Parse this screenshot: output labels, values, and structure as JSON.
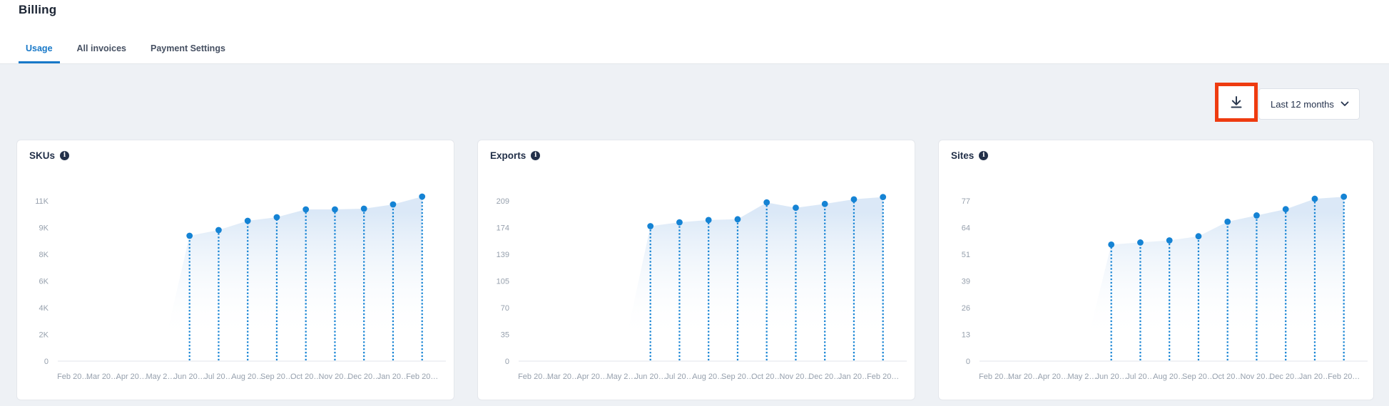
{
  "page": {
    "title": "Billing"
  },
  "tabs": {
    "items": [
      {
        "label": "Usage",
        "active": true
      },
      {
        "label": "All invoices",
        "active": false
      },
      {
        "label": "Payment Settings",
        "active": false
      }
    ]
  },
  "toolbar": {
    "download_button": {
      "icon": "download-icon"
    },
    "period_dropdown": {
      "value": "Last 12 months",
      "icon": "chevron-down-icon"
    },
    "highlight_annotation_color": "#ee3b10"
  },
  "icons": {
    "info_glyph": "i"
  },
  "colors": {
    "accent_blue": "#1583d4",
    "active_tab_blue": "#1778c8",
    "title_dark": "#223049",
    "axis_label_gray": "#96a0ad",
    "content_background": "#eef1f5",
    "card_border": "#e4e7ec",
    "highlight_red": "#ee3b10"
  },
  "chart_data": [
    {
      "type": "area",
      "title": "SKUs",
      "x_labels": [
        "Feb 20…",
        "Mar 20…",
        "Apr 20…",
        "May 2…",
        "Jun 20…",
        "Jul 20…",
        "Aug 20…",
        "Sep 20…",
        "Oct 20…",
        "Nov 20…",
        "Dec 20…",
        "Jan 20…",
        "Feb 20…"
      ],
      "y_tick_labels": [
        "11K",
        "9K",
        "8K",
        "6K",
        "4K",
        "2K",
        "0"
      ],
      "ylim": [
        0,
        11250
      ],
      "grid": false,
      "legend": "none",
      "series": [
        {
          "name": "SKUs",
          "values": [
            null,
            null,
            null,
            null,
            8800,
            9200,
            9850,
            10100,
            10650,
            10650,
            10700,
            11000,
            11550
          ]
        }
      ]
    },
    {
      "type": "area",
      "title": "Exports",
      "x_labels": [
        "Feb 20…",
        "Mar 20…",
        "Apr 20…",
        "May 2…",
        "Jun 20…",
        "Jul 20…",
        "Aug 20…",
        "Sep 20…",
        "Oct 20…",
        "Nov 20…",
        "Dec 20…",
        "Jan 20…",
        "Feb 20…"
      ],
      "y_tick_labels": [
        "209",
        "174",
        "139",
        "105",
        "70",
        "35",
        "0"
      ],
      "ylim": [
        0,
        209
      ],
      "grid": false,
      "legend": "none",
      "series": [
        {
          "name": "Exports",
          "values": [
            null,
            null,
            null,
            null,
            176,
            181,
            184,
            185,
            207,
            200,
            205,
            211,
            214
          ]
        }
      ]
    },
    {
      "type": "area",
      "title": "Sites",
      "x_labels": [
        "Feb 20…",
        "Mar 20…",
        "Apr 20…",
        "May 2…",
        "Jun 20…",
        "Jul 20…",
        "Aug 20…",
        "Sep 20…",
        "Oct 20…",
        "Nov 20…",
        "Dec 20…",
        "Jan 20…",
        "Feb 20…"
      ],
      "y_tick_labels": [
        "77",
        "64",
        "51",
        "39",
        "26",
        "13",
        "0"
      ],
      "ylim": [
        0,
        77
      ],
      "grid": false,
      "legend": "none",
      "series": [
        {
          "name": "Sites",
          "values": [
            null,
            null,
            null,
            null,
            56,
            57,
            58,
            60,
            67,
            70,
            73,
            78,
            79
          ]
        }
      ]
    }
  ]
}
